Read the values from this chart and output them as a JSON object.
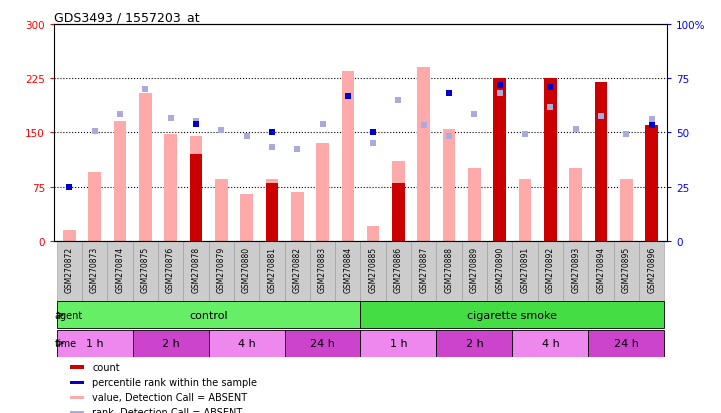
{
  "title": "GDS3493 / 1557203_at",
  "samples": [
    "GSM270872",
    "GSM270873",
    "GSM270874",
    "GSM270875",
    "GSM270876",
    "GSM270878",
    "GSM270879",
    "GSM270880",
    "GSM270881",
    "GSM270882",
    "GSM270883",
    "GSM270884",
    "GSM270885",
    "GSM270886",
    "GSM270887",
    "GSM270888",
    "GSM270889",
    "GSM270890",
    "GSM270891",
    "GSM270892",
    "GSM270893",
    "GSM270894",
    "GSM270895",
    "GSM270896"
  ],
  "value_absent": [
    15,
    95,
    165,
    205,
    148,
    145,
    85,
    65,
    85,
    68,
    135,
    235,
    20,
    110,
    240,
    155,
    100,
    155,
    85,
    160,
    100,
    155,
    85,
    160
  ],
  "rank_absent": [
    75,
    152,
    175,
    210,
    170,
    165,
    153,
    145,
    130,
    127,
    162,
    200,
    135,
    195,
    160,
    145,
    175,
    205,
    148,
    185,
    155,
    172,
    148,
    168
  ],
  "count": [
    0,
    0,
    0,
    0,
    0,
    120,
    0,
    0,
    80,
    0,
    0,
    0,
    0,
    80,
    0,
    0,
    0,
    225,
    0,
    225,
    0,
    220,
    0,
    160
  ],
  "percentile_rank": [
    75,
    0,
    0,
    0,
    0,
    162,
    0,
    0,
    150,
    0,
    0,
    200,
    150,
    0,
    0,
    205,
    0,
    215,
    0,
    212,
    0,
    0,
    0,
    160
  ],
  "count_color": "#cc0000",
  "value_absent_color": "#ffaaaa",
  "rank_absent_color": "#aaaadd",
  "percentile_rank_color": "#0000cc",
  "ylim_left": [
    0,
    300
  ],
  "ylim_right": [
    0,
    100
  ],
  "yticks_left": [
    0,
    75,
    150,
    225,
    300
  ],
  "yticks_right": [
    0,
    25,
    50,
    75,
    100
  ],
  "agent_groups": [
    {
      "label": "control",
      "start": 0,
      "end": 12,
      "color": "#66ee66"
    },
    {
      "label": "cigarette smoke",
      "start": 12,
      "end": 24,
      "color": "#44dd44"
    }
  ],
  "time_groups": [
    {
      "label": "1 h",
      "start": 0,
      "end": 3,
      "color": "#ee88ee"
    },
    {
      "label": "2 h",
      "start": 3,
      "end": 6,
      "color": "#cc44cc"
    },
    {
      "label": "4 h",
      "start": 6,
      "end": 9,
      "color": "#ee88ee"
    },
    {
      "label": "24 h",
      "start": 9,
      "end": 12,
      "color": "#cc44cc"
    },
    {
      "label": "1 h",
      "start": 12,
      "end": 15,
      "color": "#ee88ee"
    },
    {
      "label": "2 h",
      "start": 15,
      "end": 18,
      "color": "#cc44cc"
    },
    {
      "label": "4 h",
      "start": 18,
      "end": 21,
      "color": "#ee88ee"
    },
    {
      "label": "24 h",
      "start": 21,
      "end": 24,
      "color": "#cc44cc"
    }
  ],
  "legend_items": [
    {
      "color": "#cc0000",
      "label": "count"
    },
    {
      "color": "#0000cc",
      "label": "percentile rank within the sample"
    },
    {
      "color": "#ffaaaa",
      "label": "value, Detection Call = ABSENT"
    },
    {
      "color": "#aaaadd",
      "label": "rank, Detection Call = ABSENT"
    }
  ]
}
